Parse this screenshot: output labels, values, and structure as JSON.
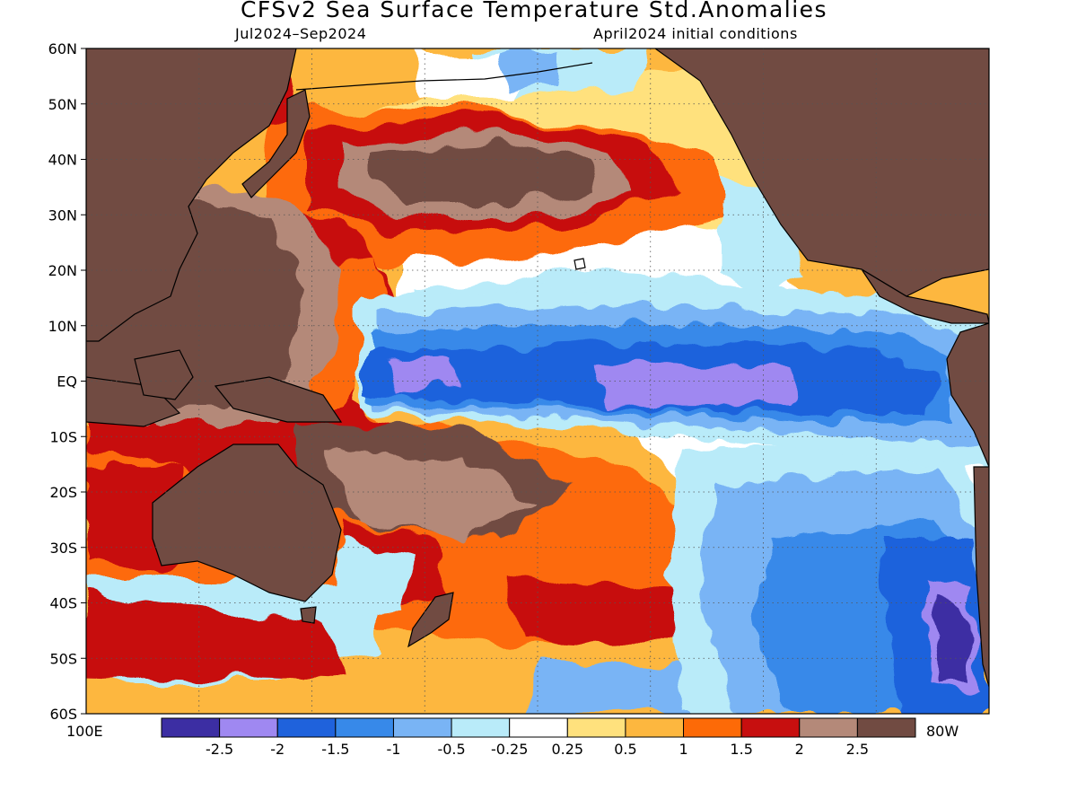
{
  "title": "CFSv2 Sea Surface Temperature Std.Anomalies",
  "period": "Jul2024–Sep2024",
  "initial_conditions": "April2024 initial conditions",
  "lat_labels": [
    "60N",
    "50N",
    "40N",
    "30N",
    "20N",
    "10N",
    "EQ",
    "10S",
    "20S",
    "30S",
    "40S",
    "50S",
    "60S"
  ],
  "lon_left": "100E",
  "lon_right": "80W",
  "colorbar": {
    "colors": [
      "#3c2ea3",
      "#9f88f1",
      "#1f62dc",
      "#3789e9",
      "#79b4f5",
      "#b9ebf9",
      "#ffffff",
      "#ffe17d",
      "#fdb73f",
      "#fd6a07",
      "#c70f0f",
      "#b48979",
      "#714b42"
    ],
    "labels": [
      "-2.5",
      "-2",
      "-1.5",
      "-1",
      "-0.5",
      "-0.25",
      "0.25",
      "0.5",
      "1",
      "1.5",
      "2",
      "2.5"
    ]
  },
  "map": {
    "land_color": "#714b42",
    "grid": "dotted",
    "colors": {
      "ext_hot": "#714b42",
      "very_hot": "#b48979",
      "hot": "#c70f0f",
      "warm": "#fd6a07",
      "mild": "#fdb73f",
      "light_warm": "#ffe17d",
      "neutral": "#ffffff",
      "light_cool": "#b9ebf9",
      "cool": "#79b4f5",
      "cold": "#3789e9",
      "colder": "#1f62dc",
      "very_cold": "#9f88f1",
      "ext_cold": "#3c2ea3"
    }
  }
}
